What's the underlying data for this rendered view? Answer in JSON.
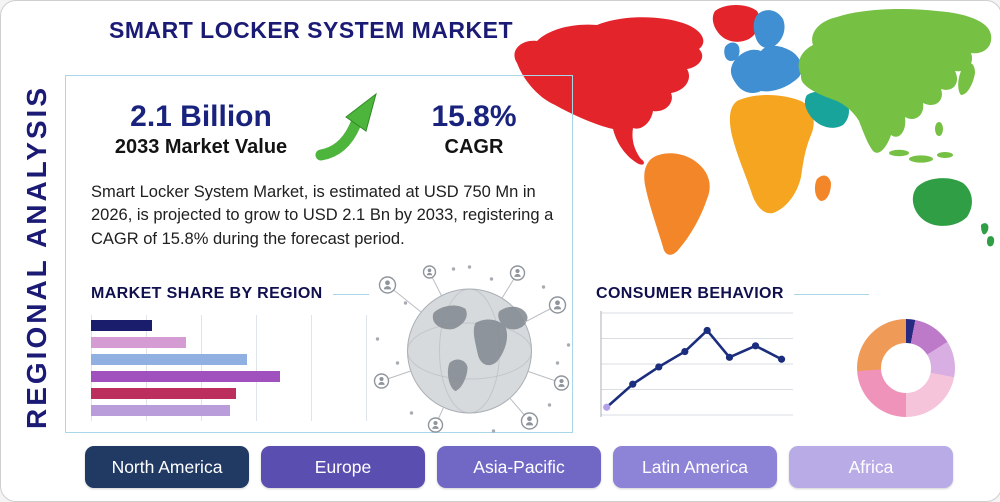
{
  "page": {
    "title": "SMART LOCKER SYSTEM MARKET",
    "side_label": "REGIONAL ANALYSIS",
    "accent_color": "#1b1b75",
    "panel_border_color": "#a9d6e8"
  },
  "highlight": {
    "market_value": "2.1 Billion",
    "market_value_caption": "2033 Market Value",
    "cagr_value": "15.8%",
    "cagr_caption": "CAGR",
    "growth_arrow_color": "#4db53c",
    "description": "Smart Locker System Market, is estimated at USD 750 Mn in 2026, is projected to grow to USD 2.1 Bn by 2033, registering a CAGR of 15.8% during the forecast period."
  },
  "sections": {
    "market_share": {
      "title": "MARKET SHARE BY REGION"
    },
    "consumer_behavior": {
      "title": "CONSUMER BEHAVIOR"
    }
  },
  "regions": [
    {
      "label": "North America",
      "color": "#203a64"
    },
    {
      "label": "Europe",
      "color": "#5a4fb0"
    },
    {
      "label": "Asia-Pacific",
      "color": "#7168c6"
    },
    {
      "label": "Latin America",
      "color": "#8d83d7"
    },
    {
      "label": "Africa",
      "color": "#b9abe6"
    }
  ],
  "map": {
    "region_colors": {
      "north-america": "#e3242b",
      "greenland": "#e3242b",
      "south-america": "#f4862a",
      "europe": "#3f8fd2",
      "scandinavia": "#3f8fd2",
      "uk": "#3f8fd2",
      "africa": "#f5a51f",
      "madagascar": "#f4862a",
      "middle-east": "#18a39b",
      "asia": "#76c043",
      "japan": "#76c043",
      "indonesia": "#76c043",
      "australia": "#2f9e44",
      "new-zealand": "#2f9e44"
    }
  },
  "chart_data": [
    {
      "type": "bar",
      "title": "MARKET SHARE BY REGION",
      "orientation": "horizontal",
      "categories": [
        "",
        "",
        "",
        "",
        "",
        ""
      ],
      "values": [
        22,
        34,
        56,
        68,
        52,
        50
      ],
      "value_unit": "percent of axis (no tick labels shown)",
      "colors": [
        "#191d6b",
        "#d59cd3",
        "#8fb0e0",
        "#a151bd",
        "#bb2e5d",
        "#b99ddb"
      ],
      "grid": "vertical",
      "axis_labels_visible": false
    },
    {
      "type": "line",
      "title": "CONSUMER BEHAVIOR",
      "points": [
        [
          2,
          6
        ],
        [
          16,
          30
        ],
        [
          30,
          48
        ],
        [
          44,
          64
        ],
        [
          56,
          86
        ],
        [
          68,
          58
        ],
        [
          82,
          70
        ],
        [
          96,
          56
        ]
      ],
      "x_range": [
        0,
        100
      ],
      "y_range": [
        0,
        100
      ],
      "line_color": "#1b2d7d",
      "marker_color": "#1b2d7d",
      "first_marker_color": "#b3a0e8",
      "grid": "horizontal",
      "axis_labels_visible": false
    },
    {
      "type": "pie",
      "variant": "donut",
      "values": [
        3,
        13,
        12,
        22,
        24,
        26
      ],
      "colors": [
        "#262a80",
        "#bd7ac9",
        "#d9aee2",
        "#f5c3da",
        "#ef93bb",
        "#f09a58"
      ],
      "labels_visible": false
    }
  ]
}
